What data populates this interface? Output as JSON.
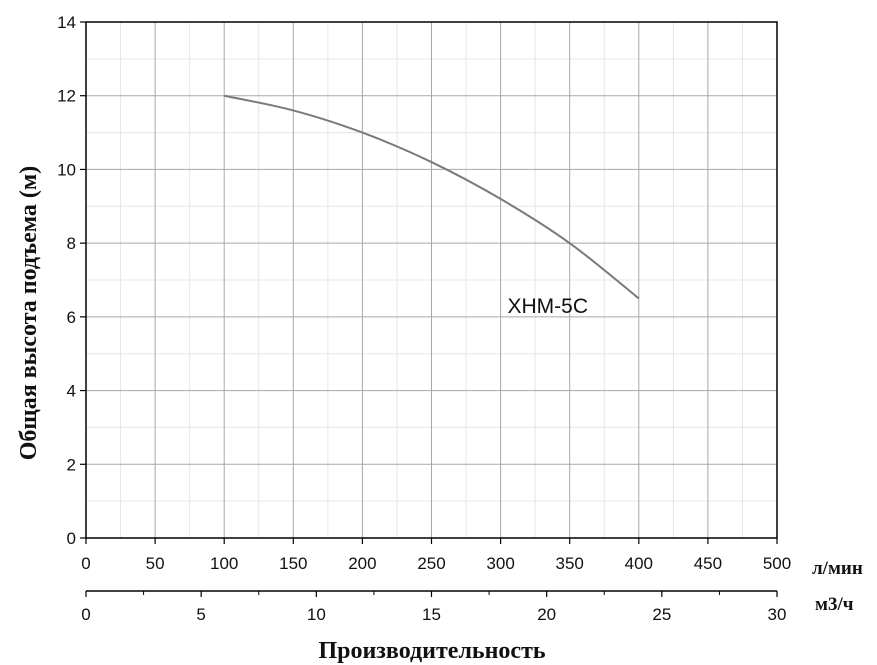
{
  "chart_data": {
    "type": "line",
    "title": "",
    "ylabel": "Общая высота подъема (м)",
    "xlabel": "Производительность",
    "x_unit_primary": "л/мин",
    "x_unit_secondary": "м3/ч",
    "xlim": [
      0,
      500
    ],
    "xlim_secondary": [
      0,
      30
    ],
    "ylim": [
      0,
      14
    ],
    "x_ticks": [
      0,
      50,
      100,
      150,
      200,
      250,
      300,
      350,
      400,
      450,
      500
    ],
    "x_ticks_secondary": [
      0,
      5,
      10,
      15,
      20,
      25,
      30
    ],
    "y_ticks": [
      0,
      2,
      4,
      6,
      8,
      10,
      12,
      14
    ],
    "grid": true,
    "minor_grid": true,
    "series": [
      {
        "name": "XHM-5C",
        "color": "#7a7a7a",
        "x": [
          100,
          150,
          200,
          250,
          300,
          350,
          400
        ],
        "y": [
          12.0,
          11.6,
          11.0,
          10.2,
          9.2,
          8.0,
          6.5
        ]
      }
    ]
  }
}
